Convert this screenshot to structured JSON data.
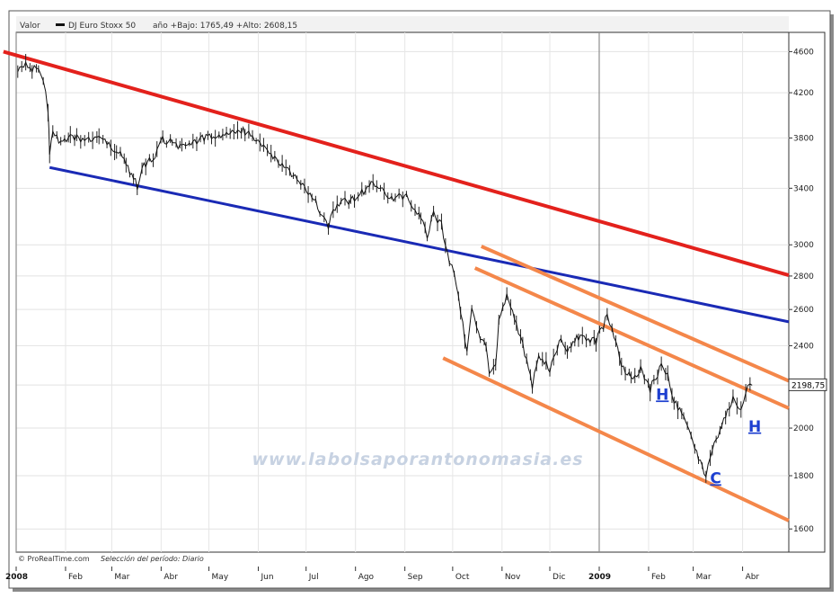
{
  "chart_data": {
    "type": "line",
    "header": {
      "valor_label": "Valor",
      "series_name": "DJ Euro Stoxx 50",
      "range_text": "año +Bajo: 1765,49 +Alto: 2608,15"
    },
    "current_price_label": "2198,75",
    "y_scale": "log",
    "y_ticks": [
      1600,
      1800,
      2000,
      2200,
      2400,
      2600,
      2800,
      3000,
      3400,
      3800,
      4200,
      4600
    ],
    "y_tick_labels": [
      "1600",
      "1800",
      "2000",
      "",
      "2400",
      "2600",
      "2800",
      "3000",
      "3400",
      "3800",
      "4200",
      "4600"
    ],
    "ylim": [
      1520,
      4800
    ],
    "x_axis": {
      "start": "2008-01-01",
      "end": "2009-04-30",
      "month_labels": [
        {
          "date": "2008-01-01",
          "text": "2008",
          "bold": true
        },
        {
          "date": "2008-02-01",
          "text": "Feb"
        },
        {
          "date": "2008-03-01",
          "text": "Mar"
        },
        {
          "date": "2008-04-01",
          "text": "Abr"
        },
        {
          "date": "2008-05-01",
          "text": "May"
        },
        {
          "date": "2008-06-01",
          "text": "Jun"
        },
        {
          "date": "2008-07-01",
          "text": "Jul"
        },
        {
          "date": "2008-08-01",
          "text": "Ago"
        },
        {
          "date": "2008-09-01",
          "text": "Sep"
        },
        {
          "date": "2008-10-01",
          "text": "Oct"
        },
        {
          "date": "2008-11-01",
          "text": "Nov"
        },
        {
          "date": "2008-12-01",
          "text": "Dic"
        },
        {
          "date": "2009-01-01",
          "text": "2009",
          "bold": true
        },
        {
          "date": "2009-02-01",
          "text": "Feb"
        },
        {
          "date": "2009-03-01",
          "text": "Mar"
        },
        {
          "date": "2009-04-01",
          "text": "Abr"
        }
      ]
    },
    "series": [
      {
        "name": "DJ Euro Stoxx 50",
        "color": "#111111",
        "points": [
          [
            "2008-01-02",
            4400
          ],
          [
            "2008-01-07",
            4460
          ],
          [
            "2008-01-11",
            4420
          ],
          [
            "2008-01-15",
            4440
          ],
          [
            "2008-01-18",
            4310
          ],
          [
            "2008-01-21",
            4050
          ],
          [
            "2008-01-22",
            3660
          ],
          [
            "2008-01-24",
            3850
          ],
          [
            "2008-01-29",
            3770
          ],
          [
            "2008-02-04",
            3800
          ],
          [
            "2008-02-08",
            3810
          ],
          [
            "2008-02-13",
            3760
          ],
          [
            "2008-02-18",
            3790
          ],
          [
            "2008-02-22",
            3810
          ],
          [
            "2008-02-27",
            3760
          ],
          [
            "2008-03-04",
            3700
          ],
          [
            "2008-03-10",
            3590
          ],
          [
            "2008-03-17",
            3420
          ],
          [
            "2008-03-20",
            3560
          ],
          [
            "2008-03-27",
            3630
          ],
          [
            "2008-04-02",
            3780
          ],
          [
            "2008-04-08",
            3760
          ],
          [
            "2008-04-14",
            3710
          ],
          [
            "2008-04-21",
            3770
          ],
          [
            "2008-04-28",
            3800
          ],
          [
            "2008-05-05",
            3800
          ],
          [
            "2008-05-12",
            3860
          ],
          [
            "2008-05-19",
            3870
          ],
          [
            "2008-05-26",
            3850
          ],
          [
            "2008-06-02",
            3760
          ],
          [
            "2008-06-09",
            3640
          ],
          [
            "2008-06-16",
            3580
          ],
          [
            "2008-06-23",
            3500
          ],
          [
            "2008-06-30",
            3390
          ],
          [
            "2008-07-07",
            3290
          ],
          [
            "2008-07-15",
            3120
          ],
          [
            "2008-07-18",
            3250
          ],
          [
            "2008-07-23",
            3300
          ],
          [
            "2008-07-29",
            3310
          ],
          [
            "2008-08-05",
            3370
          ],
          [
            "2008-08-12",
            3440
          ],
          [
            "2008-08-19",
            3370
          ],
          [
            "2008-08-26",
            3320
          ],
          [
            "2008-09-02",
            3360
          ],
          [
            "2008-09-05",
            3250
          ],
          [
            "2008-09-11",
            3190
          ],
          [
            "2008-09-15",
            3040
          ],
          [
            "2008-09-19",
            3220
          ],
          [
            "2008-09-24",
            3130
          ],
          [
            "2008-09-29",
            2900
          ],
          [
            "2008-10-02",
            2820
          ],
          [
            "2008-10-06",
            2600
          ],
          [
            "2008-10-10",
            2350
          ],
          [
            "2008-10-13",
            2600
          ],
          [
            "2008-10-16",
            2500
          ],
          [
            "2008-10-22",
            2380
          ],
          [
            "2008-10-24",
            2250
          ],
          [
            "2008-10-28",
            2300
          ],
          [
            "2008-10-30",
            2550
          ],
          [
            "2008-11-04",
            2680
          ],
          [
            "2008-11-10",
            2510
          ],
          [
            "2008-11-14",
            2400
          ],
          [
            "2008-11-20",
            2190
          ],
          [
            "2008-11-24",
            2350
          ],
          [
            "2008-12-01",
            2280
          ],
          [
            "2008-12-08",
            2450
          ],
          [
            "2008-12-12",
            2360
          ],
          [
            "2008-12-19",
            2450
          ],
          [
            "2008-12-30",
            2420
          ],
          [
            "2009-01-06",
            2560
          ],
          [
            "2009-01-09",
            2480
          ],
          [
            "2009-01-15",
            2300
          ],
          [
            "2009-01-21",
            2230
          ],
          [
            "2009-01-27",
            2280
          ],
          [
            "2009-02-02",
            2180
          ],
          [
            "2009-02-09",
            2300
          ],
          [
            "2009-02-13",
            2250
          ],
          [
            "2009-02-17",
            2120
          ],
          [
            "2009-02-23",
            2050
          ],
          [
            "2009-03-02",
            1910
          ],
          [
            "2009-03-09",
            1790
          ],
          [
            "2009-03-13",
            1920
          ],
          [
            "2009-03-19",
            2010
          ],
          [
            "2009-03-26",
            2140
          ],
          [
            "2009-03-31",
            2080
          ],
          [
            "2009-04-03",
            2170
          ],
          [
            "2009-04-07",
            2199
          ]
        ]
      }
    ],
    "trendlines": [
      {
        "color": "#e3211c",
        "width": 4,
        "points": [
          [
            "2007-12-24",
            4600
          ],
          [
            "2009-04-30",
            2805
          ]
        ]
      },
      {
        "color": "#1a2ab5",
        "width": 3,
        "points": [
          [
            "2008-01-22",
            3560
          ],
          [
            "2009-04-30",
            2530
          ]
        ]
      },
      {
        "color": "#f4874a",
        "width": 4,
        "points": [
          [
            "2008-10-19",
            2990
          ],
          [
            "2009-04-30",
            2220
          ]
        ]
      },
      {
        "color": "#f4874a",
        "width": 4,
        "points": [
          [
            "2008-10-15",
            2850
          ],
          [
            "2009-04-30",
            2090
          ]
        ]
      },
      {
        "color": "#f4874a",
        "width": 4,
        "points": [
          [
            "2008-09-25",
            2335
          ],
          [
            "2009-04-30",
            1630
          ]
        ]
      }
    ],
    "annotations": [
      {
        "text": "H",
        "date": "2009-02-09",
        "value": 2130
      },
      {
        "text": "H",
        "date": "2009-04-08",
        "value": 1985
      },
      {
        "text": "C",
        "date": "2009-03-15",
        "value": 1770
      }
    ],
    "watermark": "www.labolsaporantonomasia.es",
    "footer": {
      "brand": "© ProRealTime.com",
      "period": "Selección del período: Diario"
    },
    "grid": true
  }
}
